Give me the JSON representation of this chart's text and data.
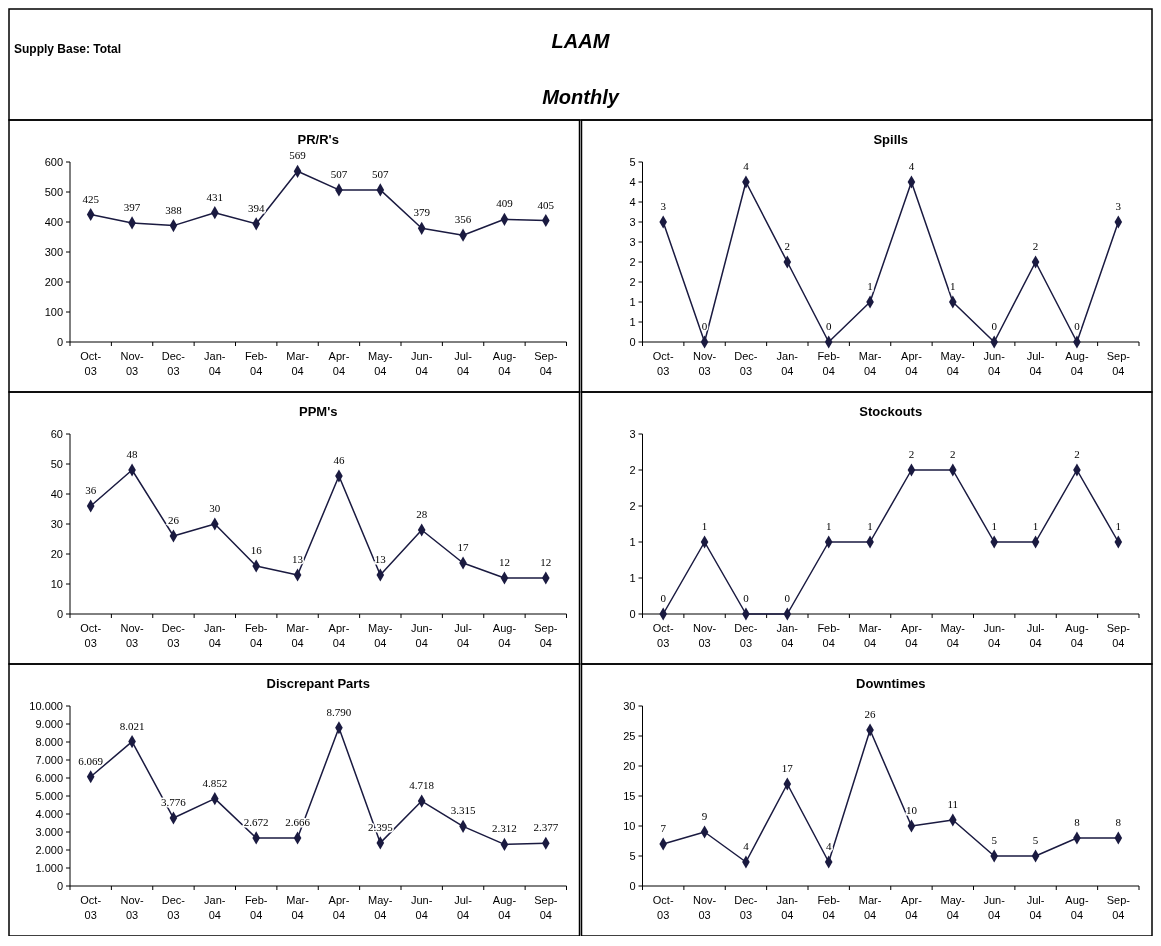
{
  "chart_data": [
    {
      "type": "other",
      "title": "LAAM",
      "subtitle": "Monthly",
      "annotations": [
        "Supply Base: Total"
      ]
    },
    {
      "type": "line",
      "title": "PR/R's",
      "categories": [
        "Oct-03",
        "Nov-03",
        "Dec-03",
        "Jan-04",
        "Feb-04",
        "Mar-04",
        "Apr-04",
        "May-04",
        "Jun-04",
        "Jul-04",
        "Aug-04",
        "Sep-04"
      ],
      "values": [
        425,
        397,
        388,
        431,
        394,
        569,
        507,
        507,
        379,
        356,
        409,
        405
      ],
      "color": "#1a1a40",
      "marker": "diamond",
      "data_labels": true,
      "ylim": [
        0,
        600
      ],
      "yticks": [
        0,
        100,
        200,
        300,
        400,
        500,
        600
      ]
    },
    {
      "type": "line",
      "title": "Spills",
      "categories": [
        "Oct-03",
        "Nov-03",
        "Dec-03",
        "Jan-04",
        "Feb-04",
        "Mar-04",
        "Apr-04",
        "May-04",
        "Jun-04",
        "Jul-04",
        "Aug-04",
        "Sep-04"
      ],
      "values": [
        3,
        0,
        4,
        2,
        0,
        1,
        4,
        1,
        0,
        2,
        0,
        3
      ],
      "color": "#1a1a40",
      "marker": "diamond",
      "data_labels": true,
      "ylim": [
        0,
        4.5
      ],
      "yticks": [
        0,
        {
          "value": 0.5,
          "label": "1"
        },
        1,
        {
          "value": 1.5,
          "label": "2"
        },
        2,
        {
          "value": 2.5,
          "label": "3"
        },
        3,
        {
          "value": 3.5,
          "label": "4"
        },
        4,
        {
          "value": 4.5,
          "label": "5"
        }
      ]
    },
    {
      "type": "line",
      "title": "PPM's",
      "categories": [
        "Oct-03",
        "Nov-03",
        "Dec-03",
        "Jan-04",
        "Feb-04",
        "Mar-04",
        "Apr-04",
        "May-04",
        "Jun-04",
        "Jul-04",
        "Aug-04",
        "Sep-04"
      ],
      "values": [
        36,
        48,
        26,
        30,
        16,
        13,
        46,
        13,
        28,
        17,
        12,
        12
      ],
      "color": "#1a1a40",
      "marker": "diamond",
      "data_labels": true,
      "ylim": [
        0,
        60
      ],
      "yticks": [
        0,
        10,
        20,
        30,
        40,
        50,
        60
      ]
    },
    {
      "type": "line",
      "title": "Stockouts",
      "categories": [
        "Oct-03",
        "Nov-03",
        "Dec-03",
        "Jan-04",
        "Feb-04",
        "Mar-04",
        "Apr-04",
        "May-04",
        "Jun-04",
        "Jul-04",
        "Aug-04",
        "Sep-04"
      ],
      "values": [
        0,
        1,
        0,
        0,
        1,
        1,
        2,
        2,
        1,
        1,
        2,
        1
      ],
      "color": "#1a1a40",
      "marker": "diamond",
      "data_labels": true,
      "ylim": [
        0,
        2.5
      ],
      "yticks": [
        0,
        {
          "value": 0.5,
          "label": "1"
        },
        1,
        {
          "value": 1.5,
          "label": "2"
        },
        2,
        {
          "value": 2.5,
          "label": "3"
        }
      ]
    },
    {
      "type": "line",
      "title": "Discrepant Parts",
      "categories": [
        "Oct-03",
        "Nov-03",
        "Dec-03",
        "Jan-04",
        "Feb-04",
        "Mar-04",
        "Apr-04",
        "May-04",
        "Jun-04",
        "Jul-04",
        "Aug-04",
        "Sep-04"
      ],
      "values": [
        6069,
        8021,
        3776,
        4852,
        2672,
        2666,
        8790,
        2395,
        4718,
        3315,
        2312,
        2377
      ],
      "value_labels": [
        "6.069",
        "8.021",
        "3.776",
        "4.852",
        "2.672",
        "2.666",
        "8.790",
        "2.395",
        "4.718",
        "3.315",
        "2.312",
        "2.377"
      ],
      "color": "#1a1a40",
      "marker": "diamond",
      "ylim": [
        0,
        10000
      ],
      "yticks": [
        0,
        {
          "value": 1000,
          "label": "1.000"
        },
        {
          "value": 2000,
          "label": "2.000"
        },
        {
          "value": 3000,
          "label": "3.000"
        },
        {
          "value": 4000,
          "label": "4.000"
        },
        {
          "value": 5000,
          "label": "5.000"
        },
        {
          "value": 6000,
          "label": "6.000"
        },
        {
          "value": 7000,
          "label": "7.000"
        },
        {
          "value": 8000,
          "label": "8.000"
        },
        {
          "value": 9000,
          "label": "9.000"
        },
        {
          "value": 10000,
          "label": "10.000"
        }
      ]
    },
    {
      "type": "line",
      "title": "Downtimes",
      "categories": [
        "Oct-03",
        "Nov-03",
        "Dec-03",
        "Jan-04",
        "Feb-04",
        "Mar-04",
        "Apr-04",
        "May-04",
        "Jun-04",
        "Jul-04",
        "Aug-04",
        "Sep-04"
      ],
      "values": [
        7,
        9,
        4,
        17,
        4,
        26,
        10,
        11,
        5,
        5,
        8,
        8
      ],
      "color": "#1a1a40",
      "marker": "diamond",
      "data_labels": true,
      "ylim": [
        0,
        30
      ],
      "yticks": [
        0,
        5,
        10,
        15,
        20,
        25,
        30
      ]
    }
  ]
}
